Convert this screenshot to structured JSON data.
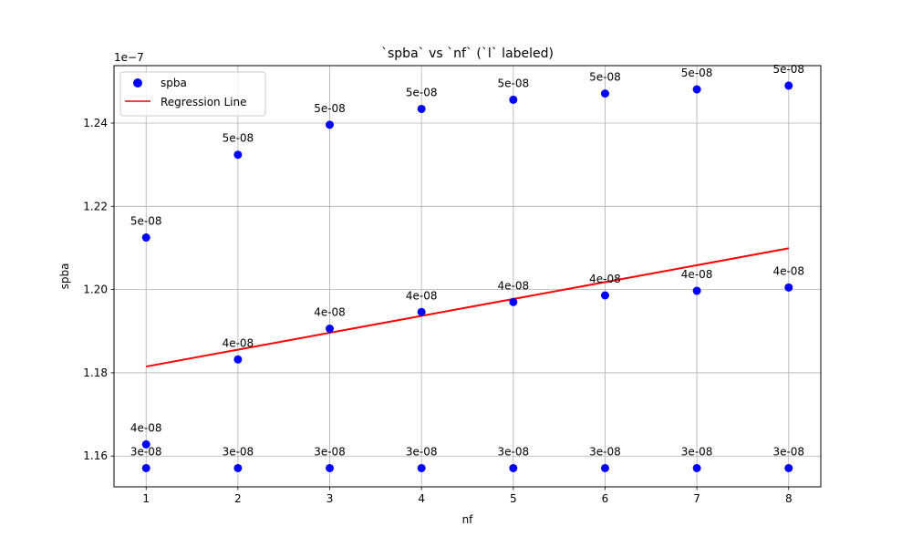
{
  "chart_data": {
    "type": "scatter",
    "title": "`spba` vs `nf` (`l` labeled)",
    "xlabel": "nf",
    "ylabel": "spba",
    "offset_text": "1e−7",
    "xlim": [
      0.65,
      8.35
    ],
    "ylim": [
      1.1526,
      1.2538
    ],
    "y_scale": 1e-07,
    "xticks": [
      1,
      2,
      3,
      4,
      5,
      6,
      7,
      8
    ],
    "yticks": [
      1.16,
      1.18,
      1.2,
      1.22,
      1.24
    ],
    "ytick_labels": [
      "1.16",
      "1.18",
      "1.20",
      "1.22",
      "1.24"
    ],
    "grid": true,
    "legend_position": "top-left",
    "series": [
      {
        "name": "spba",
        "kind": "scatter",
        "color": "#0000ff",
        "points": [
          {
            "x": 1,
            "y": 1.1571,
            "label": "3e-08"
          },
          {
            "x": 1,
            "y": 1.1628,
            "label": "4e-08"
          },
          {
            "x": 1,
            "y": 1.2125,
            "label": "5e-08"
          },
          {
            "x": 2,
            "y": 1.1571,
            "label": "3e-08"
          },
          {
            "x": 2,
            "y": 1.1832,
            "label": "4e-08"
          },
          {
            "x": 2,
            "y": 1.2324,
            "label": "5e-08"
          },
          {
            "x": 3,
            "y": 1.1571,
            "label": "3e-08"
          },
          {
            "x": 3,
            "y": 1.1906,
            "label": "4e-08"
          },
          {
            "x": 3,
            "y": 1.2396,
            "label": "5e-08"
          },
          {
            "x": 4,
            "y": 1.1571,
            "label": "3e-08"
          },
          {
            "x": 4,
            "y": 1.1946,
            "label": "4e-08"
          },
          {
            "x": 4,
            "y": 1.2434,
            "label": "5e-08"
          },
          {
            "x": 5,
            "y": 1.1571,
            "label": "3e-08"
          },
          {
            "x": 5,
            "y": 1.197,
            "label": "4e-08"
          },
          {
            "x": 5,
            "y": 1.2456,
            "label": "5e-08"
          },
          {
            "x": 6,
            "y": 1.1571,
            "label": "3e-08"
          },
          {
            "x": 6,
            "y": 1.1986,
            "label": "4e-08"
          },
          {
            "x": 6,
            "y": 1.2471,
            "label": "5e-08"
          },
          {
            "x": 7,
            "y": 1.1571,
            "label": "3e-08"
          },
          {
            "x": 7,
            "y": 1.1997,
            "label": "4e-08"
          },
          {
            "x": 7,
            "y": 1.2481,
            "label": "5e-08"
          },
          {
            "x": 8,
            "y": 1.1571,
            "label": "3e-08"
          },
          {
            "x": 8,
            "y": 1.2005,
            "label": "4e-08"
          },
          {
            "x": 8,
            "y": 1.249,
            "label": "5e-08"
          }
        ]
      },
      {
        "name": "Regression Line",
        "kind": "line",
        "color": "#ff0000",
        "points": [
          {
            "x": 1,
            "y": 1.1815
          },
          {
            "x": 8,
            "y": 1.2099
          }
        ]
      }
    ]
  }
}
